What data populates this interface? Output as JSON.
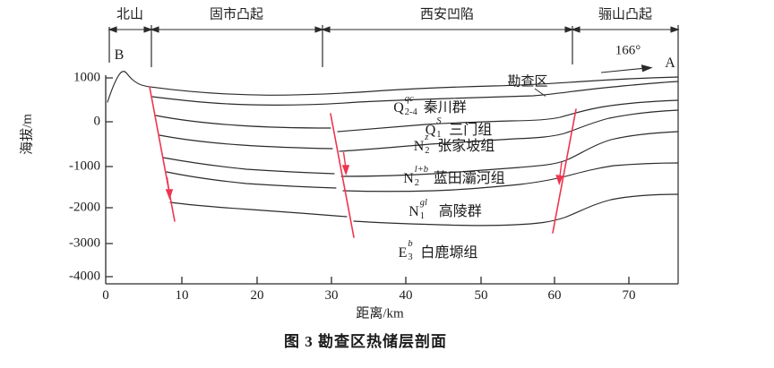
{
  "header": {
    "sections": [
      {
        "label": "北山"
      },
      {
        "label": "固市凸起"
      },
      {
        "label": "西安凹陷"
      },
      {
        "label": "骊山凸起"
      }
    ],
    "left_endpoint": "B",
    "right_endpoint": "A",
    "bearing": "166°"
  },
  "plot": {
    "survey_label": "勘查区",
    "y_axis": {
      "title": "海拔/m",
      "ticks": [
        "1000",
        "0",
        "-1000",
        "-2000",
        "-3000",
        "-4000"
      ]
    },
    "x_axis": {
      "title": "距离/km",
      "ticks": [
        "0",
        "10",
        "20",
        "30",
        "40",
        "50",
        "60",
        "70"
      ]
    },
    "strata_labels": [
      {
        "prefix": "Q",
        "sub": "2-4",
        "sup": "qc",
        "name": "秦川群"
      },
      {
        "prefix": "Q",
        "sub": "1",
        "sup": "S",
        "name": "三门组"
      },
      {
        "prefix": "N",
        "sub": "2",
        "sup": "z",
        "name": "张家坡组"
      },
      {
        "prefix": "N",
        "sub": "2",
        "sup": "l+b",
        "name": "蓝田灞河组"
      },
      {
        "prefix": "N",
        "sub": "1",
        "sup": "gl",
        "name": "高陵群"
      },
      {
        "prefix": "E",
        "sub": "3",
        "sup": "b",
        "name": "白鹿塬组"
      }
    ]
  },
  "caption": "图 3  勘查区热储层剖面",
  "colors": {
    "line": "#2b2b2b",
    "fault": "#ee3550",
    "text": "#1c1c1c",
    "background": "#ffffff"
  },
  "chart_data": {
    "type": "cross-section",
    "title": "图 3 勘查区热储层剖面",
    "x_axis": {
      "label": "距离/km",
      "range_km": [
        0,
        76
      ],
      "ticks": [
        0,
        10,
        20,
        30,
        40,
        50,
        60,
        70
      ]
    },
    "y_axis": {
      "label": "海拔/m",
      "range_m": [
        -4000,
        1000
      ],
      "ticks": [
        1000,
        0,
        -1000,
        -2000,
        -3000,
        -4000
      ]
    },
    "section_endpoints": {
      "left": "B",
      "right": "A"
    },
    "bearing_deg": 166,
    "tectonic_units": [
      {
        "name": "北山",
        "from_km": 0,
        "to_km": 6
      },
      {
        "name": "固市凸起",
        "from_km": 6,
        "to_km": 29
      },
      {
        "name": "西安凹陷",
        "from_km": 29,
        "to_km": 62
      },
      {
        "name": "骊山凸起",
        "from_km": 62,
        "to_km": 76
      }
    ],
    "strata_top_to_bottom": [
      "Q2-4^qc 秦川群",
      "Q1^S 三门组",
      "N2^z 张家坡组",
      "N2^l+b 蓝田灞河组",
      "N1^gl 高陵群",
      "E3^b 白鹿塬组"
    ],
    "faults_approx_km": [
      6,
      30,
      60
    ],
    "annotation": "勘查区"
  }
}
